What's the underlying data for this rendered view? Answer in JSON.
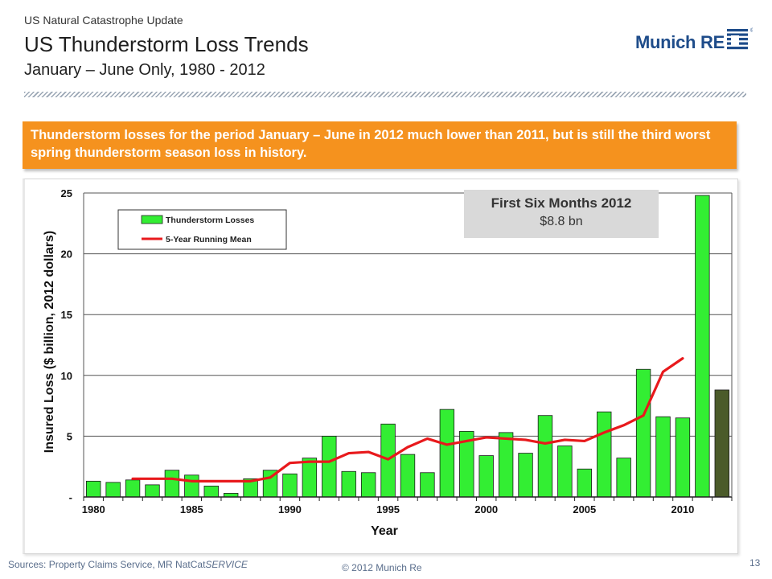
{
  "header": {
    "kicker": "US Natural Catastrophe Update",
    "title": "US Thunderstorm Loss Trends",
    "subtitle": "January – June Only, 1980 - 2012"
  },
  "logo": {
    "text": "Munich RE",
    "mark": "®",
    "color": "#1e4c8a"
  },
  "banner": {
    "text": "Thunderstorm losses for the period January – June in 2012 much lower than 2011, but is still the third worst spring thunderstorm season loss in history.",
    "color": "#f5921e"
  },
  "highlight": {
    "title": "First Six Months 2012",
    "value": "$8.8 bn"
  },
  "chart_data": {
    "type": "bar",
    "xlabel": "Year",
    "ylabel": "Insured Loss ($ billion, 2012 dollars)",
    "ylim": [
      0,
      25
    ],
    "yticks": [
      0,
      5,
      10,
      15,
      20,
      25
    ],
    "ytick_labels": [
      "-",
      "5",
      "10",
      "15",
      "20",
      "25"
    ],
    "xtick_labels": [
      "1980",
      "1985",
      "1990",
      "1995",
      "2000",
      "2005",
      "2010"
    ],
    "grid": true,
    "legend_position": "top-left",
    "categories": [
      1980,
      1981,
      1982,
      1983,
      1984,
      1985,
      1986,
      1987,
      1988,
      1989,
      1990,
      1991,
      1992,
      1993,
      1994,
      1995,
      1996,
      1997,
      1998,
      1999,
      2000,
      2001,
      2002,
      2003,
      2004,
      2005,
      2006,
      2007,
      2008,
      2009,
      2010,
      2011,
      2012
    ],
    "series": [
      {
        "name": "Thunderstorm Losses",
        "kind": "bar",
        "color": "#33ee33",
        "highlight_color": "#4b5b2a",
        "values": [
          1.3,
          1.2,
          1.4,
          1.0,
          2.2,
          1.8,
          0.9,
          0.3,
          1.5,
          2.2,
          1.9,
          3.2,
          5.0,
          2.1,
          2.0,
          6.0,
          3.5,
          2.0,
          7.2,
          5.4,
          3.4,
          5.3,
          3.6,
          6.7,
          4.2,
          2.3,
          7.0,
          3.2,
          10.5,
          6.6,
          6.5,
          24.8,
          8.8
        ]
      },
      {
        "name": "5-Year Running Mean",
        "kind": "line",
        "color": "#e8191c",
        "x": [
          1982,
          1983,
          1984,
          1985,
          1986,
          1987,
          1988,
          1989,
          1990,
          1991,
          1992,
          1993,
          1994,
          1995,
          1996,
          1997,
          1998,
          1999,
          2000,
          2001,
          2002,
          2003,
          2004,
          2005,
          2006,
          2007,
          2008,
          2009,
          2010
        ],
        "values": [
          1.5,
          1.5,
          1.5,
          1.3,
          1.3,
          1.3,
          1.3,
          1.6,
          2.8,
          2.9,
          2.9,
          3.6,
          3.7,
          3.1,
          4.1,
          4.8,
          4.3,
          4.6,
          4.9,
          4.8,
          4.7,
          4.4,
          4.7,
          4.6,
          5.3,
          5.9,
          6.7,
          10.3,
          11.4
        ]
      }
    ]
  },
  "footer": {
    "sources_prefix": "Sources: Property Claims Service, MR NatCat",
    "sources_suffix": "SERVICE",
    "copyright": "© 2012 Munich Re",
    "page": "13"
  }
}
